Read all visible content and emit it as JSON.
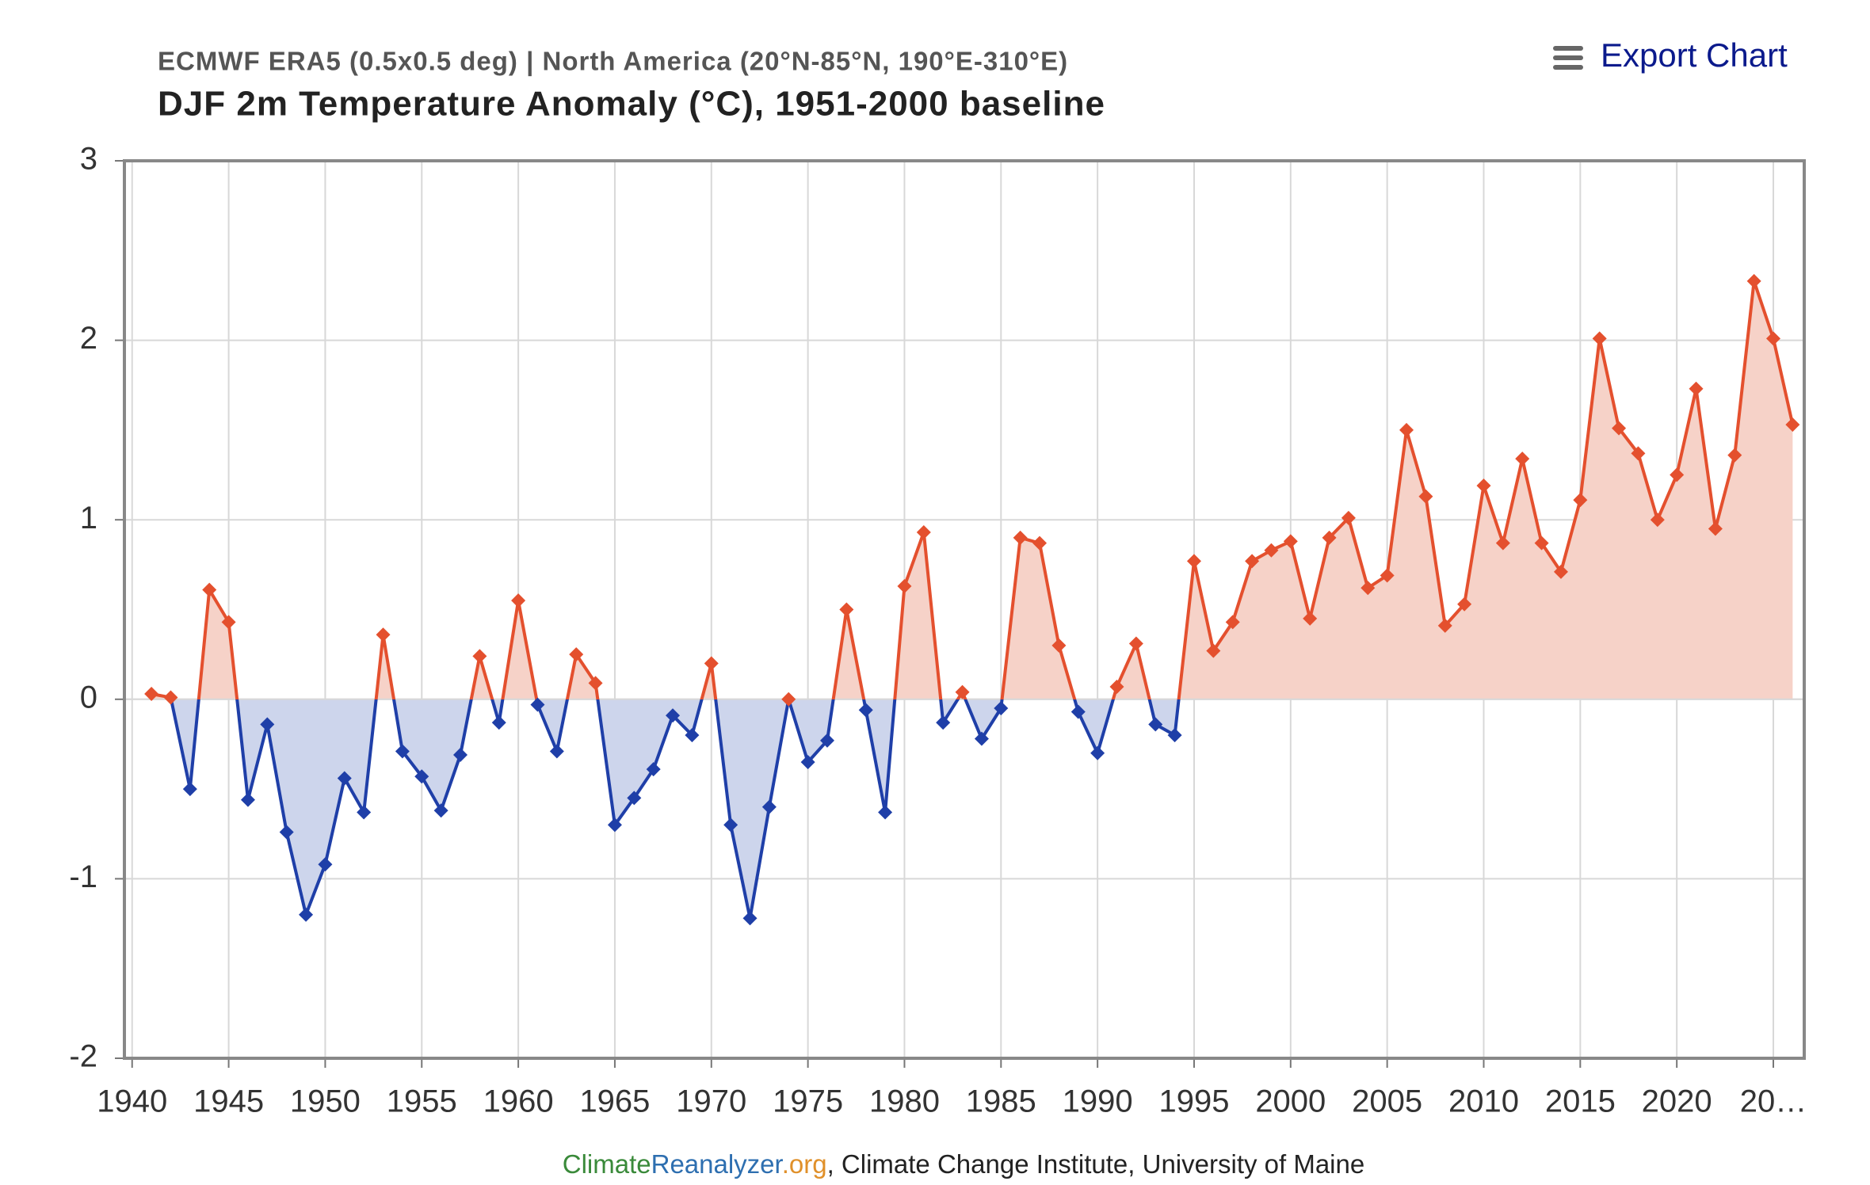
{
  "chart_data": {
    "type": "line",
    "subtitle": "ECMWF ERA5 (0.5x0.5 deg) | North America (20°N-85°N, 190°E-310°E)",
    "title": "DJF 2m Temperature Anomaly (°C), 1951-2000 baseline",
    "export_button": "Export Chart",
    "credit": [
      "Climate",
      "Reanalyzer",
      ".org",
      ", Climate Change Institute, University of Maine"
    ],
    "x": [
      1941,
      1942,
      1943,
      1944,
      1945,
      1946,
      1947,
      1948,
      1949,
      1950,
      1951,
      1952,
      1953,
      1954,
      1955,
      1956,
      1957,
      1958,
      1959,
      1960,
      1961,
      1962,
      1963,
      1964,
      1965,
      1966,
      1967,
      1968,
      1969,
      1970,
      1971,
      1972,
      1973,
      1974,
      1975,
      1976,
      1977,
      1978,
      1979,
      1980,
      1981,
      1982,
      1983,
      1984,
      1985,
      1986,
      1987,
      1988,
      1989,
      1990,
      1991,
      1992,
      1993,
      1994,
      1995,
      1996,
      1997,
      1998,
      1999,
      2000,
      2001,
      2002,
      2003,
      2004,
      2005,
      2006,
      2007,
      2008,
      2009,
      2010,
      2011,
      2012,
      2013,
      2014,
      2015,
      2016,
      2017,
      2018,
      2019,
      2020,
      2021,
      2022,
      2023,
      2024,
      2025,
      2026
    ],
    "values": [
      0.03,
      0.01,
      -0.5,
      0.61,
      0.43,
      -0.56,
      -0.14,
      -0.74,
      -1.2,
      -0.92,
      -0.44,
      -0.63,
      0.36,
      -0.29,
      -0.43,
      -0.62,
      -0.31,
      0.24,
      -0.13,
      0.55,
      -0.03,
      -0.29,
      0.25,
      0.09,
      -0.7,
      -0.55,
      -0.39,
      -0.09,
      -0.2,
      0.2,
      -0.7,
      -1.22,
      -0.6,
      0,
      -0.35,
      -0.23,
      0.5,
      -0.06,
      -0.63,
      0.63,
      0.93,
      -0.13,
      0.04,
      -0.22,
      -0.05,
      0.9,
      0.87,
      0.3,
      -0.07,
      -0.3,
      0.07,
      0.31,
      -0.14,
      -0.2,
      0.77,
      0.27,
      0.43,
      0.77,
      0.83,
      0.88,
      0.45,
      0.9,
      1.01,
      0.62,
      0.69,
      1.5,
      1.13,
      0.41,
      0.53,
      1.19,
      0.87,
      1.34,
      0.87,
      0.71,
      1.11,
      2.01,
      1.51,
      1.37,
      1,
      1.25,
      1.73,
      0.95,
      1.36,
      2.33,
      2.01,
      1.53
    ],
    "positive_color": "#e4502e",
    "negative_color": "#1f3fa8",
    "positive_fill": "#f6d2c8",
    "negative_fill": "#cdd5ec",
    "xlim": [
      1939.6,
      2026.6
    ],
    "xticks": [
      1940,
      1945,
      1950,
      1955,
      1960,
      1965,
      1970,
      1975,
      1980,
      1985,
      1990,
      1995,
      2000,
      2005,
      2010,
      2015,
      2020,
      {
        "value": 2025,
        "label": "20…"
      }
    ],
    "ylim": [
      -2,
      3
    ],
    "yticks": [
      -2,
      -1,
      0,
      1,
      2,
      3
    ],
    "grid": true
  }
}
